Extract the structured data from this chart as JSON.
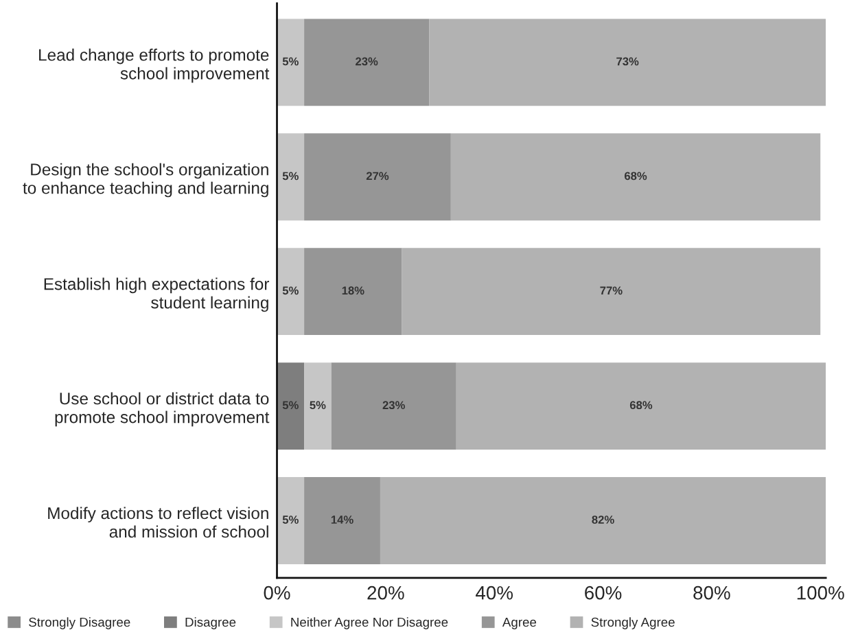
{
  "chart_data": {
    "type": "bar",
    "orientation": "horizontal",
    "stacked": true,
    "categories": [
      "Lead change efforts to promote\nschool improvement",
      "Design the school's organization\nto enhance teaching and learning",
      "Establish high expectations for\nstudent learning",
      "Use school or district data to\npromote school improvement",
      "Modify actions to reflect vision\nand mission of school"
    ],
    "series": [
      {
        "name": "Strongly Disagree",
        "color": "#8c8c8c",
        "values": [
          null,
          null,
          null,
          null,
          null
        ],
        "value_labels": [
          null,
          null,
          null,
          null,
          null
        ]
      },
      {
        "name": "Disagree",
        "color": "#7e7e7e",
        "values": [
          null,
          null,
          null,
          5,
          null
        ],
        "value_labels": [
          null,
          null,
          null,
          "5%",
          null
        ]
      },
      {
        "name": "Neither Agree Nor Disagree",
        "color": "#c6c6c6",
        "values": [
          5,
          5,
          5,
          5,
          5
        ],
        "value_labels": [
          "5%",
          "5%",
          "5%",
          "5%",
          "5%"
        ]
      },
      {
        "name": "Agree",
        "color": "#969696",
        "values": [
          23,
          27,
          18,
          23,
          14
        ],
        "value_labels": [
          "23%",
          "27%",
          "18%",
          "23%",
          "14%"
        ]
      },
      {
        "name": "Strongly Agree",
        "color": "#b2b2b2",
        "values": [
          73,
          68,
          77,
          68,
          82
        ],
        "value_labels": [
          "73%",
          "68%",
          "77%",
          "68%",
          "82%"
        ]
      }
    ],
    "xlim": [
      0,
      101
    ],
    "xticks": [
      {
        "value": 0,
        "label": "0%"
      },
      {
        "value": 20,
        "label": "20%"
      },
      {
        "value": 40,
        "label": "40%"
      },
      {
        "value": 60,
        "label": "60%"
      },
      {
        "value": 80,
        "label": "80%"
      },
      {
        "value": 100,
        "label": "100%"
      }
    ],
    "grid": false,
    "legend": "bottom left"
  }
}
